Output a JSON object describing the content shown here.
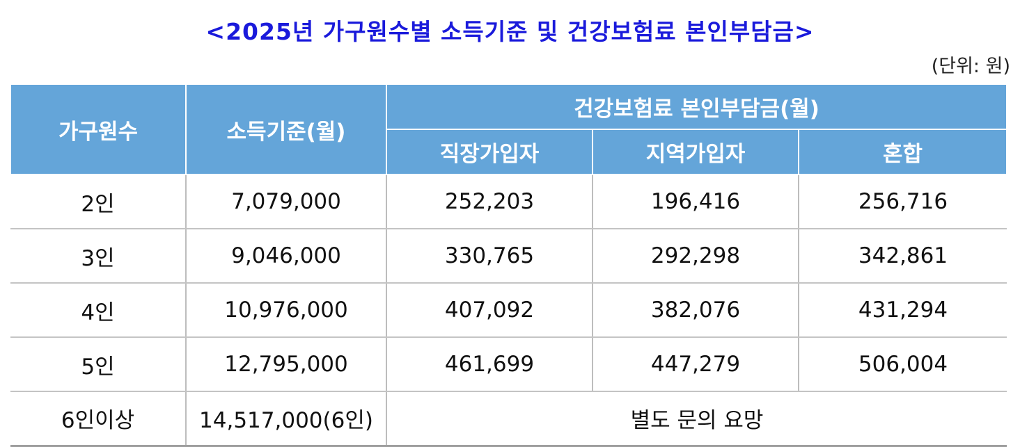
{
  "title": "<2025년 가구원수별 소득기준 및 건강보험료 본인부담금>",
  "unit": "(단위: 원)",
  "headers": {
    "household": "가구원수",
    "income": "소득기준(월)",
    "premium_group": "건강보험료 본인부담금(월)",
    "employee": "직장가입자",
    "regional": "지역가입자",
    "mixed": "혼합"
  },
  "rows": [
    {
      "household": "2인",
      "income": "7,079,000",
      "employee": "252,203",
      "regional": "196,416",
      "mixed": "256,716"
    },
    {
      "household": "3인",
      "income": "9,046,000",
      "employee": "330,765",
      "regional": "292,298",
      "mixed": "342,861"
    },
    {
      "household": "4인",
      "income": "10,976,000",
      "employee": "407,092",
      "regional": "382,076",
      "mixed": "431,294"
    },
    {
      "household": "5인",
      "income": "12,795,000",
      "employee": "461,699",
      "regional": "447,279",
      "mixed": "506,004"
    }
  ],
  "last_row": {
    "household": "6인이상",
    "income": "14,517,000(6인)",
    "note": "별도 문의 요망"
  },
  "colors": {
    "title": "#1a1adb",
    "header_bg": "#64a5d9",
    "header_text": "#ffffff"
  }
}
